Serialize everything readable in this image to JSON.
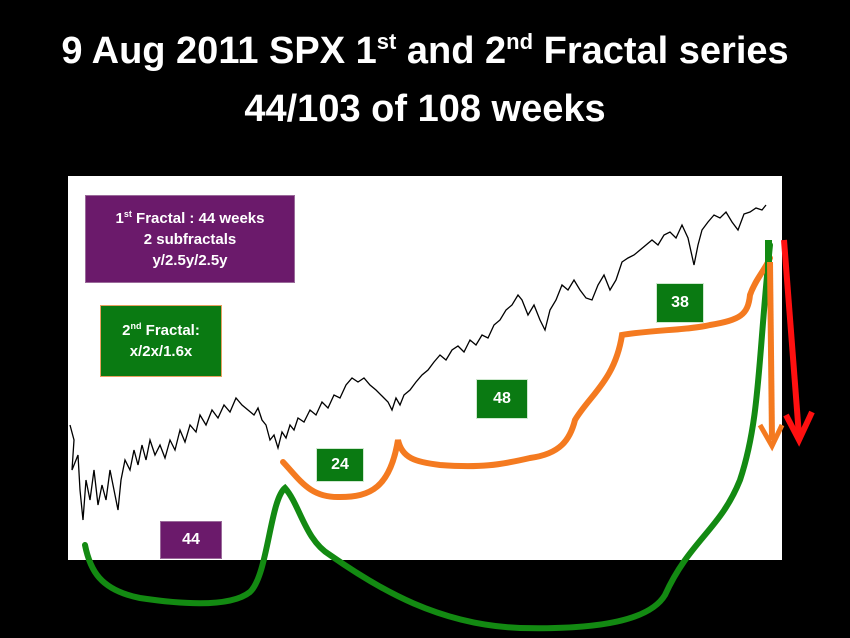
{
  "title": {
    "line1": [
      "9 Aug 2011 SPX 1",
      "st",
      " and 2",
      "nd",
      " Fractal series"
    ],
    "line2": "44/103 of 108 weeks"
  },
  "first_fractal_box": {
    "line1": [
      "1",
      "st",
      " Fractal : 44 weeks"
    ],
    "line2": "2 subfractals",
    "line3": "y/2.5y/2.5y"
  },
  "second_fractal_box": {
    "line1": [
      "2",
      "nd",
      " Fractal:"
    ],
    "line2": "x/2x/1.6x"
  },
  "labels": [
    "44",
    "24",
    "48",
    "38"
  ]
}
